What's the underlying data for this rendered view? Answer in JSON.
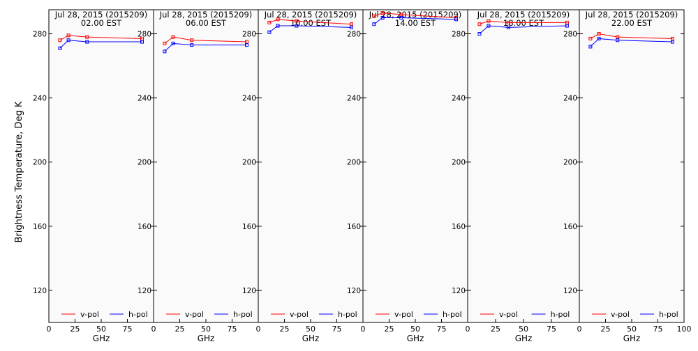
{
  "chart_data": {
    "type": "line",
    "ylabel": "Brightness Temperature, Deg K",
    "xlabel": "GHz",
    "xlim": [
      0,
      100
    ],
    "ylim": [
      100,
      295
    ],
    "yticks": [
      120,
      160,
      200,
      240,
      280
    ],
    "xticks": [
      0,
      25,
      50,
      75,
      100
    ],
    "grid": false,
    "legend_position": "bottom",
    "colors": {
      "v-pol": "#ff0000",
      "h-pol": "#0000ff",
      "background": "#fafafa"
    },
    "panels": [
      {
        "title": "Jul 28, 2015 (2015209)",
        "subtitle": "02.00 EST",
        "x": [
          10.6,
          18.7,
          36.5,
          89.0
        ],
        "series": [
          {
            "name": "v-pol",
            "values": [
              276,
              279,
              278,
              277
            ]
          },
          {
            "name": "h-pol",
            "values": [
              271,
              276,
              275,
              275
            ]
          }
        ]
      },
      {
        "title": "Jul 28, 2015 (2015209)",
        "subtitle": "06.00 EST",
        "x": [
          10.6,
          18.7,
          36.5,
          89.0
        ],
        "series": [
          {
            "name": "v-pol",
            "values": [
              274,
              278,
              276,
              275
            ]
          },
          {
            "name": "h-pol",
            "values": [
              269,
              274,
              273,
              273
            ]
          }
        ]
      },
      {
        "title": "Jul 28, 2015 (2015209)",
        "subtitle": "10.00 EST",
        "x": [
          10.6,
          18.7,
          36.5,
          89.0
        ],
        "series": [
          {
            "name": "v-pol",
            "values": [
              287,
              289,
              288,
              286
            ]
          },
          {
            "name": "h-pol",
            "values": [
              281,
              285,
              285,
              284
            ]
          }
        ]
      },
      {
        "title": "Jul 28, 2015 (2015209)",
        "subtitle": "14.00 EST",
        "x": [
          10.6,
          18.7,
          36.5,
          89.0
        ],
        "series": [
          {
            "name": "v-pol",
            "values": [
              291,
              293,
              292,
              290
            ]
          },
          {
            "name": "h-pol",
            "values": [
              286,
              290,
              290,
              289
            ]
          }
        ]
      },
      {
        "title": "Jul 28, 2015 (2015209)",
        "subtitle": "18.00 EST",
        "x": [
          10.6,
          18.7,
          36.5,
          89.0
        ],
        "series": [
          {
            "name": "v-pol",
            "values": [
              286,
              288,
              287,
              287
            ]
          },
          {
            "name": "h-pol",
            "values": [
              280,
              285,
              284,
              285
            ]
          }
        ]
      },
      {
        "title": "Jul 28, 2015 (2015209)",
        "subtitle": "22.00 EST",
        "x": [
          10.6,
          18.7,
          36.5,
          89.0
        ],
        "series": [
          {
            "name": "v-pol",
            "values": [
              277,
              280,
              278,
              277
            ]
          },
          {
            "name": "h-pol",
            "values": [
              272,
              277,
              276,
              275
            ]
          }
        ]
      }
    ]
  }
}
